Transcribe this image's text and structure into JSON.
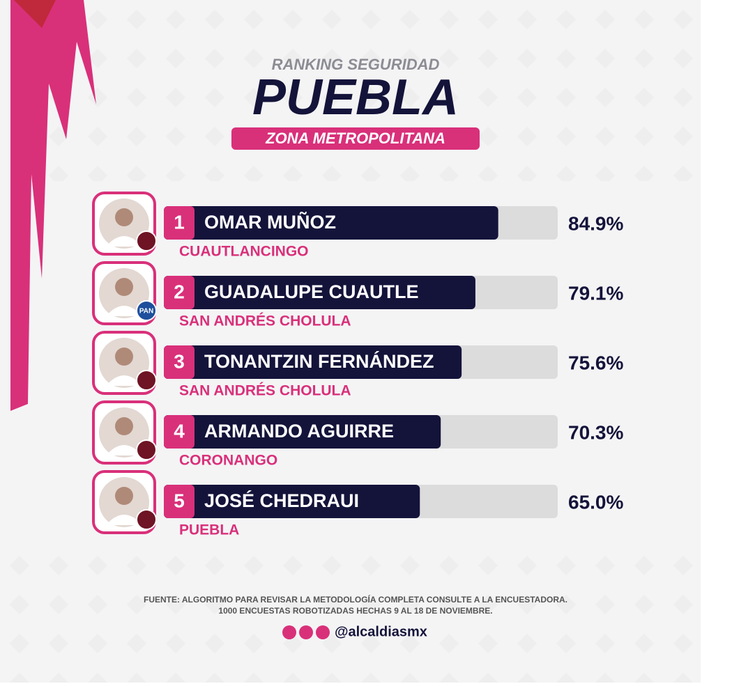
{
  "chart_data": {
    "type": "bar",
    "kicker": "RANKING SEGURIDAD",
    "title": "PUEBLA",
    "subtitle": "ZONA METROPOLITANA",
    "ranks": [
      1,
      2,
      3,
      4,
      5
    ],
    "categories": [
      "OMAR MUÑOZ",
      "GUADALUPE CUAUTLE",
      "TONANTZIN FERNÁNDEZ",
      "ARMANDO AGUIRRE",
      "JOSÉ CHEDRAUI"
    ],
    "municipalities": [
      "CUAUTLANCINGO",
      "SAN ANDRÉS CHOLULA",
      "SAN ANDRÉS CHOLULA",
      "CORONANGO",
      "PUEBLA"
    ],
    "values": [
      84.9,
      79.1,
      75.6,
      70.3,
      65.0
    ],
    "value_labels": [
      "84.9%",
      "79.1%",
      "75.6%",
      "70.3%",
      "65.0%"
    ],
    "badge_text": "PAN",
    "xlim": [
      0,
      100
    ],
    "color": "#14133a",
    "track_color": "#dcdcdc",
    "accent_color": "#d9307a",
    "source": "FUENTE: ALGORITMO PARA REVISAR LA METODOLOGÍA COMPLETA CONSULTE A LA ENCUESTADORA.",
    "source_detail": "1000 ENCUESTAS ROBOTIZADAS HECHAS 9 AL 18 DE NOVIEMBRE.",
    "handle": "@alcaldiasmx"
  }
}
